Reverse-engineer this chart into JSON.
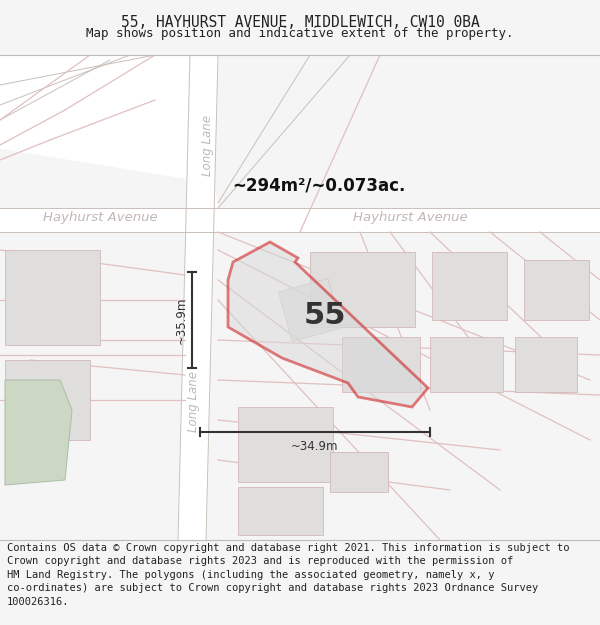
{
  "title_line1": "55, HAYHURST AVENUE, MIDDLEWICH, CW10 0BA",
  "title_line2": "Map shows position and indicative extent of the property.",
  "footer_text": "Contains OS data © Crown copyright and database right 2021. This information is subject to Crown copyright and database rights 2023 and is reproduced with the permission of HM Land Registry. The polygons (including the associated geometry, namely x, y co-ordinates) are subject to Crown copyright and database rights 2023 Ordnance Survey 100026316.",
  "area_label": "~294m²/~0.073ac.",
  "number_label": "55",
  "dim_vertical": "~35.9m",
  "dim_horizontal": "~34.9m",
  "road_hayhurst_left": "Hayhurst Avenue",
  "road_hayhurst_right": "Hayhurst Avenue",
  "road_long_top": "Long Lane",
  "road_long_bot": "Long Lane",
  "bg_color": "#f5f5f5",
  "map_bg": "#faf9f7",
  "road_fill": "#f0eeeb",
  "road_line": "#d4b8b8",
  "plot_outline": "#cc0000",
  "plot_fill": "#d8d8d8",
  "gray_fill": "#e0dedd",
  "gray_outline": "#d4b8b8",
  "green_fill": "#ccd8c4",
  "green_outline": "#aabcaa",
  "dim_color": "#333333",
  "road_label_color": "#c0b8b8",
  "title_color": "#222222",
  "footer_color": "#222222"
}
